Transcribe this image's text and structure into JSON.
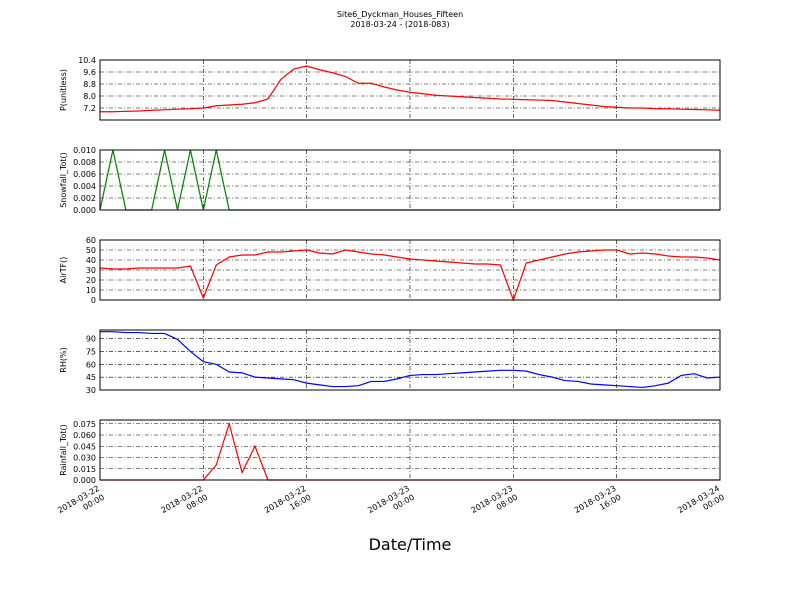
{
  "chart_data": {
    "type": "line",
    "title": "Site6_Dyckman_Houses_Fifteen",
    "subtitle": "2018-03-24 - (2018-083)",
    "xlabel": "Date/Time",
    "grid": true,
    "x": [
      "2018-03-22 00:00",
      "2018-03-22 01:00",
      "2018-03-22 02:00",
      "2018-03-22 03:00",
      "2018-03-22 04:00",
      "2018-03-22 05:00",
      "2018-03-22 06:00",
      "2018-03-22 07:00",
      "2018-03-22 08:00",
      "2018-03-22 09:00",
      "2018-03-22 10:00",
      "2018-03-22 11:00",
      "2018-03-22 12:00",
      "2018-03-22 13:00",
      "2018-03-22 14:00",
      "2018-03-22 15:00",
      "2018-03-22 16:00",
      "2018-03-22 17:00",
      "2018-03-22 18:00",
      "2018-03-22 19:00",
      "2018-03-22 20:00",
      "2018-03-22 21:00",
      "2018-03-22 22:00",
      "2018-03-22 23:00",
      "2018-03-23 00:00",
      "2018-03-23 01:00",
      "2018-03-23 02:00",
      "2018-03-23 03:00",
      "2018-03-23 04:00",
      "2018-03-23 05:00",
      "2018-03-23 06:00",
      "2018-03-23 07:00",
      "2018-03-23 08:00",
      "2018-03-23 09:00",
      "2018-03-23 10:00",
      "2018-03-23 11:00",
      "2018-03-23 12:00",
      "2018-03-23 13:00",
      "2018-03-23 14:00",
      "2018-03-23 15:00",
      "2018-03-23 16:00",
      "2018-03-23 17:00",
      "2018-03-23 18:00",
      "2018-03-23 19:00",
      "2018-03-23 20:00",
      "2018-03-23 21:00",
      "2018-03-23 22:00",
      "2018-03-23 23:00",
      "2018-03-24 00:00"
    ],
    "xlim": [
      "2018-03-22 00:00",
      "2018-03-24 00:00"
    ],
    "xticks": [
      "2018-03-22 00:00",
      "2018-03-22 08:00",
      "2018-03-22 16:00",
      "2018-03-23 00:00",
      "2018-03-23 08:00",
      "2018-03-23 16:00",
      "2018-03-24 00:00"
    ],
    "panels": [
      {
        "ylabel": "P(unitless)",
        "ylim": [
          6.4,
          10.4
        ],
        "yticks": [
          7.2,
          {
            "value": 8,
            "label": "8.0"
          },
          8.8,
          9.6,
          10.4
        ],
        "series": [
          {
            "color": "#ff0000",
            "values": [
              6.95,
              6.95,
              6.98,
              7.0,
              7.05,
              7.08,
              7.12,
              7.15,
              7.2,
              7.35,
              7.4,
              7.45,
              7.55,
              7.8,
              9.1,
              9.8,
              10.0,
              9.75,
              9.55,
              9.3,
              8.85,
              8.85,
              8.6,
              8.4,
              8.25,
              8.15,
              8.05,
              8.0,
              7.95,
              7.9,
              7.85,
              7.8,
              7.78,
              7.75,
              7.73,
              7.7,
              7.6,
              7.5,
              7.4,
              7.3,
              7.25,
              7.2,
              7.2,
              7.15,
              7.15,
              7.12,
              7.1,
              7.08,
              7.05
            ]
          }
        ]
      },
      {
        "ylabel": "Snowfall_Tot()",
        "ylim": [
          0,
          0.01
        ],
        "yticks": [
          {
            "value": 0,
            "label": "0.000"
          },
          {
            "value": 0.002,
            "label": "0.002"
          },
          {
            "value": 0.004,
            "label": "0.004"
          },
          {
            "value": 0.006,
            "label": "0.006"
          },
          {
            "value": 0.008,
            "label": "0.008"
          },
          {
            "value": 0.01,
            "label": "0.010"
          }
        ],
        "series": [
          {
            "color": "#008000",
            "values": [
              0,
              0.01,
              0,
              0,
              0,
              0.01,
              0,
              0.01,
              0,
              0.01,
              0,
              0,
              0,
              0,
              0,
              0,
              0,
              0,
              0,
              0,
              0,
              0,
              0,
              0,
              0,
              0,
              0,
              0,
              0,
              0,
              0,
              0,
              0,
              0,
              0,
              0,
              0,
              0,
              0,
              0,
              0,
              0,
              0,
              0,
              0,
              0,
              0,
              0,
              0
            ]
          }
        ]
      },
      {
        "ylabel": "AirTF()",
        "ylim": [
          0,
          60
        ],
        "yticks": [
          0,
          10,
          20,
          30,
          40,
          50,
          60
        ],
        "series": [
          {
            "color": "#ff0000",
            "values": [
              32,
              31,
              31,
              32,
              32,
              32,
              32,
              34,
              2,
              35,
              43,
              45,
              45,
              48,
              48,
              49,
              50,
              47,
              46,
              50,
              48,
              46,
              45,
              43,
              41,
              40,
              39,
              38,
              37,
              36,
              36,
              35,
              0,
              37,
              40,
              43,
              46,
              48,
              49,
              50,
              50,
              46,
              47,
              46,
              44,
              43,
              43,
              42,
              40
            ]
          }
        ]
      },
      {
        "ylabel": "RH(%)",
        "ylim": [
          30,
          100
        ],
        "yticks": [
          30,
          45,
          60,
          75,
          90
        ],
        "series": [
          {
            "color": "#0000ff",
            "values": [
              98,
              98,
              97,
              97,
              96,
              96,
              89,
              75,
              63,
              60,
              51,
              50,
              45,
              44,
              43,
              42,
              38,
              36,
              34,
              34,
              35,
              40,
              40,
              43,
              47,
              48,
              48,
              49,
              50,
              51,
              52,
              53,
              53,
              52,
              48,
              45,
              41,
              40,
              37,
              36,
              35,
              34,
              33,
              35,
              38,
              47,
              49,
              44,
              45
            ]
          }
        ]
      },
      {
        "ylabel": "Rainfall_Tot()",
        "ylim": [
          0,
          0.08
        ],
        "yticks": [
          {
            "value": 0,
            "label": "0.000"
          },
          0.015,
          {
            "value": 0.03,
            "label": "0.030"
          },
          0.045,
          {
            "value": 0.06,
            "label": "0.060"
          },
          0.075
        ],
        "series": [
          {
            "color": "#ff0000",
            "values": [
              0,
              0,
              0,
              0,
              0,
              0,
              0,
              0,
              0,
              0.02,
              0.075,
              0.01,
              0.045,
              0,
              0,
              0,
              0,
              0,
              0,
              0,
              0,
              0,
              0,
              0,
              0,
              0,
              0,
              0,
              0,
              0,
              0,
              0,
              0,
              0,
              0,
              0,
              0,
              0,
              0,
              0,
              0,
              0,
              0,
              0,
              0,
              0,
              0,
              0,
              0
            ]
          }
        ]
      }
    ]
  }
}
